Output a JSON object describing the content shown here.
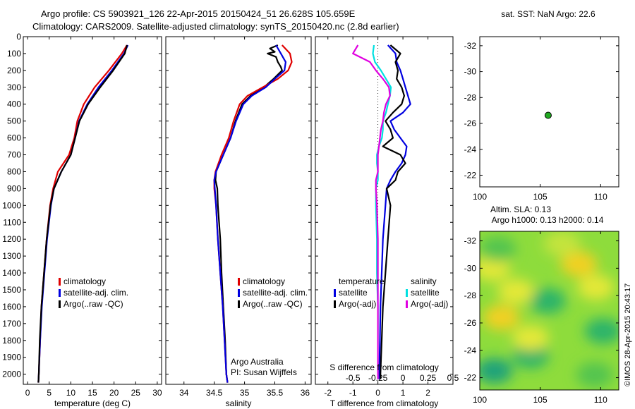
{
  "title_line1": "Argo profile: CS 5903921_126 22-Apr-2015 20150424_51 26.628S 105.659E",
  "title_line2": "Climatology: CARS2009. Satellite-adjusted climatology: synTS_20150420.nc (2.8d earlier)",
  "colors": {
    "climatology": "#e00000",
    "satellite": "#0000e0",
    "argo": "#000000",
    "satellite_s": "#00e0e0",
    "argo_s": "#e000e0"
  },
  "chart_data": [
    {
      "type": "line",
      "xlabel": "temperature (deg C)",
      "xlim": [
        -1,
        31
      ],
      "xticks": [
        0,
        5,
        10,
        15,
        20,
        25,
        30
      ],
      "ylim": [
        2060,
        0
      ],
      "yticks": [
        0,
        100,
        200,
        300,
        400,
        500,
        600,
        700,
        800,
        900,
        1000,
        1100,
        1200,
        1300,
        1400,
        1500,
        1600,
        1700,
        1800,
        1900,
        2000
      ],
      "legend": {
        "entries": [
          "climatology",
          "satellite-adj. clim.",
          "Argo(..raw -QC)"
        ]
      },
      "series": [
        {
          "name": "climatology",
          "depth": [
            50,
            100,
            200,
            300,
            400,
            500,
            600,
            700,
            800,
            900,
            1000,
            1200,
            1400,
            1600,
            1800,
            2000,
            2050
          ],
          "values": [
            23,
            21.8,
            18.8,
            15.5,
            13,
            11.5,
            10.8,
            9.6,
            7,
            5.9,
            5.2,
            4.4,
            3.8,
            3.2,
            2.9,
            2.6,
            2.5
          ]
        },
        {
          "name": "satellite-adj. clim.",
          "depth": [
            50,
            100,
            200,
            300,
            400,
            500,
            600,
            700,
            800,
            900,
            1000,
            1200,
            1400,
            1600,
            1800,
            2000,
            2050
          ],
          "values": [
            23.2,
            22.3,
            19.5,
            16.4,
            13.8,
            11.9,
            11,
            10,
            7.8,
            6.1,
            5.4,
            4.5,
            3.9,
            3.3,
            2.9,
            2.6,
            2.5
          ]
        },
        {
          "name": "Argo(..raw -QC)",
          "depth": [
            50,
            100,
            200,
            300,
            400,
            500,
            600,
            700,
            800,
            900,
            1000,
            1200,
            1400,
            1600,
            1800,
            2000,
            2050
          ],
          "values": [
            23,
            22.5,
            19.8,
            16.8,
            14,
            12,
            11,
            10,
            7.8,
            6.1,
            5.3,
            4.4,
            3.8,
            3.2,
            2.8,
            2.6,
            2.5
          ]
        }
      ],
      "annotations": []
    },
    {
      "type": "line",
      "xlabel": "salinity",
      "xlim": [
        33.7,
        36.1
      ],
      "xticks": [
        34,
        34.5,
        35,
        35.5,
        36
      ],
      "ylim": [
        2060,
        0
      ],
      "legend": {
        "entries": [
          "climatology",
          "satellite-adj. clim.",
          "Argo(..raw -QC)"
        ]
      },
      "series": [
        {
          "name": "climatology",
          "depth": [
            50,
            100,
            150,
            200,
            250,
            300,
            350,
            400,
            500,
            600,
            700,
            800,
            850,
            900,
            1000,
            1200,
            1400,
            1600,
            1800,
            2000,
            2050
          ],
          "values": [
            35.62,
            35.75,
            35.78,
            35.72,
            35.55,
            35.3,
            35.05,
            34.92,
            34.82,
            34.74,
            34.62,
            34.52,
            34.5,
            34.5,
            34.53,
            34.56,
            34.6,
            34.64,
            34.67,
            34.7,
            34.72
          ]
        },
        {
          "name": "satellite-adj. clim.",
          "depth": [
            50,
            100,
            150,
            200,
            250,
            300,
            350,
            400,
            500,
            600,
            700,
            800,
            850,
            900,
            1000,
            1200,
            1400,
            1600,
            1800,
            2000,
            2050
          ],
          "values": [
            35.52,
            35.6,
            35.68,
            35.66,
            35.5,
            35.35,
            35.12,
            34.98,
            34.86,
            34.77,
            34.65,
            34.53,
            34.5,
            34.51,
            34.53,
            34.56,
            34.6,
            34.64,
            34.67,
            34.7,
            34.72
          ]
        },
        {
          "name": "Argo(..raw -QC)",
          "depth": [
            50,
            70,
            90,
            100,
            120,
            150,
            180,
            200,
            250,
            300,
            350,
            400,
            500,
            600,
            700,
            800,
            850,
            900,
            1000,
            1100,
            1200,
            1400,
            1600,
            1800,
            2000,
            2050
          ],
          "values": [
            35.55,
            35.42,
            35.5,
            35.38,
            35.52,
            35.55,
            35.6,
            35.62,
            35.48,
            35.32,
            35.1,
            34.96,
            34.85,
            34.77,
            34.65,
            34.53,
            34.52,
            34.55,
            34.56,
            34.58,
            34.6,
            34.62,
            34.65,
            34.68,
            34.7,
            34.72
          ]
        }
      ],
      "annotations": [
        "Argo Australia",
        "PI: Susan Wijffels"
      ]
    },
    {
      "type": "line",
      "xlabel": "T difference from climatology",
      "xlabel_top": "S difference from climatology",
      "xlim": [
        -2.5,
        3
      ],
      "xticks": [
        -2,
        -1,
        0,
        1,
        2
      ],
      "xticks_s": [
        "-0.5",
        "-0.25",
        "0",
        "0.25",
        "0.5"
      ],
      "ylim": [
        2060,
        0
      ],
      "legend": {
        "temperature": "temperature",
        "salinity": "salinity",
        "entries": [
          "satellite",
          "Argo(-adj)",
          "satellite",
          "Argo(-adj)"
        ]
      },
      "series": [
        {
          "name": "satellite",
          "group": "temperature",
          "depth": [
            50,
            100,
            150,
            200,
            250,
            300,
            350,
            400,
            450,
            500,
            550,
            600,
            650,
            700,
            750,
            800,
            850,
            900,
            1000,
            1200,
            1400,
            1600,
            1800,
            2000,
            2030
          ],
          "values": [
            0.4,
            0.7,
            0.75,
            0.9,
            1,
            1.1,
            1.2,
            1.3,
            1,
            0.5,
            0.65,
            0.9,
            1.15,
            1.1,
            0.95,
            0.7,
            0.5,
            0.35,
            0.3,
            0.2,
            0.15,
            0.1,
            0.08,
            0.05,
            0.03
          ]
        },
        {
          "name": "Argo(-adj)",
          "group": "temperature",
          "depth": [
            50,
            100,
            150,
            200,
            250,
            300,
            350,
            400,
            450,
            500,
            550,
            600,
            650,
            700,
            750,
            800,
            850,
            900,
            1000,
            1200,
            1400,
            1600,
            1800,
            2000,
            2030
          ],
          "values": [
            0.5,
            0.9,
            0.7,
            0.8,
            0.75,
            0.95,
            1.05,
            0.95,
            0.6,
            0.3,
            0.5,
            0.6,
            0.2,
            0.9,
            1.1,
            0.8,
            0.7,
            0.35,
            0.5,
            0.4,
            0.3,
            0.2,
            0.15,
            0.1,
            0.1
          ]
        },
        {
          "name": "satellite",
          "group": "salinity",
          "depth": [
            50,
            100,
            150,
            200,
            250,
            300,
            350,
            400,
            450,
            500,
            550,
            600,
            650,
            700,
            750,
            800,
            850,
            900,
            1000,
            1200,
            1400,
            1600,
            1800,
            2000,
            2030
          ],
          "values": [
            -0.04,
            -0.05,
            -0.03,
            0.03,
            0.08,
            0.13,
            0.12,
            0.1,
            0.08,
            0.05,
            0.05,
            0.04,
            0.01,
            -0.01,
            -0.01,
            0,
            0,
            -0.02,
            -0.02,
            -0.01,
            -0.01,
            0,
            0,
            0,
            0
          ]
        },
        {
          "name": "Argo(-adj)",
          "group": "salinity",
          "depth": [
            50,
            100,
            150,
            200,
            250,
            300,
            350,
            400,
            450,
            500,
            550,
            600,
            650,
            700,
            750,
            800,
            850,
            900,
            1000,
            1200,
            1400,
            1600,
            1800,
            2000,
            2030
          ],
          "values": [
            -0.2,
            -0.25,
            -0.08,
            -0.02,
            0.05,
            0.11,
            0.12,
            0.08,
            0.06,
            0.05,
            0.03,
            0.02,
            0.01,
            0,
            0,
            0,
            -0.02,
            -0.02,
            -0.01,
            0,
            0,
            0,
            0,
            0,
            0
          ]
        }
      ],
      "annotations": []
    },
    {
      "type": "scatter",
      "title": "sat. SST: NaN Argo: 22.6",
      "xlim": [
        100,
        111.5
      ],
      "xticks": [
        100,
        105,
        110
      ],
      "ylim": [
        -32.7,
        -21.1
      ],
      "yticks": [
        -22,
        -24,
        -26,
        -28,
        -30,
        -32
      ],
      "points": [
        {
          "x": 105.659,
          "y": -26.628
        }
      ]
    },
    {
      "type": "heatmap",
      "title": "Altim. SLA: 0.13",
      "subtitle": "Argo h1000: 0.13 h2000: 0.14",
      "xlim": [
        100,
        111.5
      ],
      "xticks": [
        100,
        105,
        110
      ],
      "ylim": [
        -32.7,
        -21.1
      ],
      "yticks": [
        -22,
        -24,
        -26,
        -28,
        -30,
        -32
      ],
      "blobs": [
        {
          "x": 101.2,
          "y": -22.5,
          "v": -0.9
        },
        {
          "x": 104.2,
          "y": -23.6,
          "v": -0.4
        },
        {
          "x": 109.5,
          "y": -22.2,
          "v": -0.3
        },
        {
          "x": 101.8,
          "y": -26.4,
          "v": 1.0
        },
        {
          "x": 104.2,
          "y": -24.9,
          "v": 0.7
        },
        {
          "x": 105.6,
          "y": -27.6,
          "v": -0.4
        },
        {
          "x": 103.0,
          "y": -28.3,
          "v": 0.6
        },
        {
          "x": 109.6,
          "y": -28.6,
          "v": 0.5
        },
        {
          "x": 108.2,
          "y": -30.3,
          "v": 0.9
        },
        {
          "x": 101.0,
          "y": -30.0,
          "v": 0.6
        },
        {
          "x": 101.5,
          "y": -31.4,
          "v": -0.3
        },
        {
          "x": 110.2,
          "y": -25.4,
          "v": -0.35
        },
        {
          "x": 106.8,
          "y": -31.8,
          "v": 0.4
        }
      ]
    }
  ],
  "side_label": "©IMOS 28-Apr-2015 20:43:17"
}
